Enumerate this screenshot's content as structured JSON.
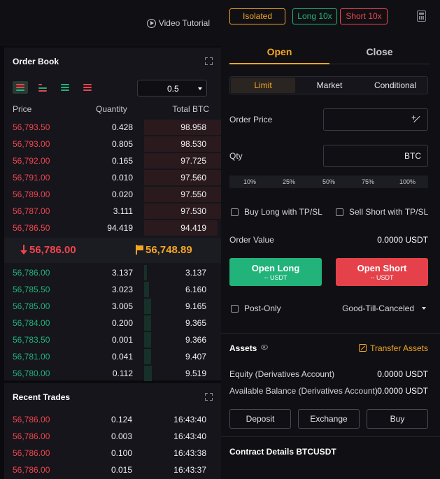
{
  "header": {
    "video_tutorial": "Video Tutorial"
  },
  "order_book": {
    "title": "Order Book",
    "precision": "0.5",
    "columns": [
      "Price",
      "Quantity",
      "Total BTC"
    ],
    "asks": [
      {
        "price": "56,793.50",
        "qty": "0.428",
        "total": "98.958"
      },
      {
        "price": "56,793.00",
        "qty": "0.805",
        "total": "98.530"
      },
      {
        "price": "56,792.00",
        "qty": "0.165",
        "total": "97.725"
      },
      {
        "price": "56,791.00",
        "qty": "0.010",
        "total": "97.560"
      },
      {
        "price": "56,789.00",
        "qty": "0.020",
        "total": "97.550"
      },
      {
        "price": "56,787.00",
        "qty": "3.111",
        "total": "97.530"
      },
      {
        "price": "56,786.50",
        "qty": "94.419",
        "total": "94.419"
      }
    ],
    "last_price": "56,786.00",
    "mark_price": "56,748.89",
    "bids": [
      {
        "price": "56,786.00",
        "qty": "3.137",
        "total": "3.137"
      },
      {
        "price": "56,785.50",
        "qty": "3.023",
        "total": "6.160"
      },
      {
        "price": "56,785.00",
        "qty": "3.005",
        "total": "9.165"
      },
      {
        "price": "56,784.00",
        "qty": "0.200",
        "total": "9.365"
      },
      {
        "price": "56,783.50",
        "qty": "0.001",
        "total": "9.366"
      },
      {
        "price": "56,781.00",
        "qty": "0.041",
        "total": "9.407"
      },
      {
        "price": "56,780.00",
        "qty": "0.112",
        "total": "9.519"
      }
    ]
  },
  "recent_trades": {
    "title": "Recent Trades",
    "rows": [
      {
        "price": "56,786.00",
        "qty": "0.124",
        "time": "16:43:40"
      },
      {
        "price": "56,786.00",
        "qty": "0.003",
        "time": "16:43:40"
      },
      {
        "price": "56,786.00",
        "qty": "0.100",
        "time": "16:43:38"
      },
      {
        "price": "56,786.00",
        "qty": "0.015",
        "time": "16:43:37"
      }
    ]
  },
  "trade": {
    "margin_mode": "Isolated",
    "long_leverage": "Long 10x",
    "short_leverage": "Short 10x",
    "tabs": [
      "Open",
      "Close"
    ],
    "order_types": [
      "Limit",
      "Market",
      "Conditional"
    ],
    "order_price_label": "Order Price",
    "qty_label": "Qty",
    "qty_unit": "BTC",
    "percents": [
      "10%",
      "25%",
      "50%",
      "75%",
      "100%"
    ],
    "buy_tpsl": "Buy Long with TP/SL",
    "sell_tpsl": "Sell Short with TP/SL",
    "order_value_label": "Order Value",
    "order_value": "0.0000 USDT",
    "open_long": "Open Long",
    "open_long_sub": "-- USDT",
    "open_short": "Open Short",
    "open_short_sub": "-- USDT",
    "post_only": "Post-Only",
    "time_in_force": "Good-Till-Canceled"
  },
  "assets": {
    "title": "Assets",
    "transfer": "Transfer Assets",
    "equity_label": "Equity (Derivatives Account)",
    "equity_value": "0.0000 USDT",
    "available_label": "Available Balance (Derivatives Account)",
    "available_value": "0.0000 USDT",
    "buttons": [
      "Deposit",
      "Exchange",
      "Buy"
    ]
  },
  "contract_details": "Contract Details BTCUSDT",
  "colors": {
    "accent": "#f5a623",
    "buy": "#21b37a",
    "sell": "#f0454e"
  }
}
